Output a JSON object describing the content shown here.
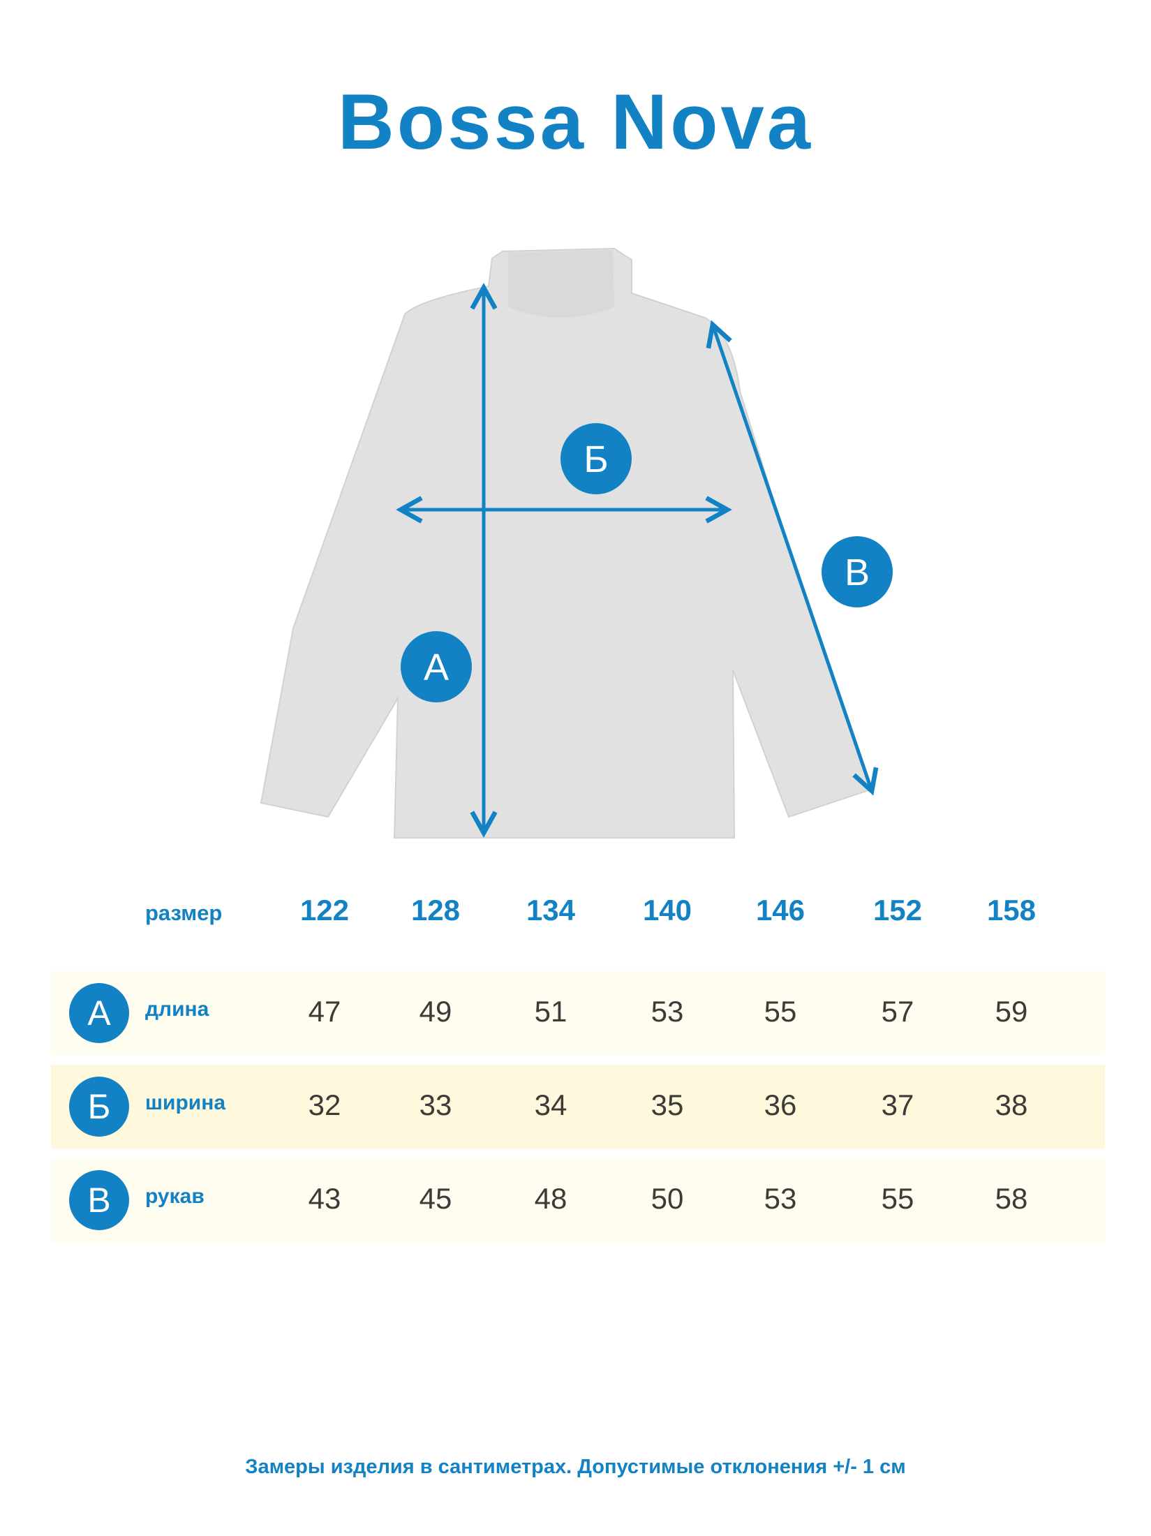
{
  "brand": "Bossa Nova",
  "colors": {
    "accent": "#1282c4",
    "row_light": "#fffdf0",
    "row_yellow": "#fef8dc",
    "garment": "#e1e1e1"
  },
  "diagram": {
    "labels": {
      "length": "А",
      "width": "Б",
      "sleeve": "В"
    }
  },
  "table": {
    "size_label": "размер",
    "sizes": [
      "122",
      "128",
      "134",
      "140",
      "146",
      "152",
      "158"
    ],
    "rows": [
      {
        "badge": "А",
        "label": "длина",
        "values": [
          "47",
          "49",
          "51",
          "53",
          "55",
          "57",
          "59"
        ]
      },
      {
        "badge": "Б",
        "label": "ширина",
        "values": [
          "32",
          "33",
          "34",
          "35",
          "36",
          "37",
          "38"
        ]
      },
      {
        "badge": "В",
        "label": "рукав",
        "values": [
          "43",
          "45",
          "48",
          "50",
          "53",
          "55",
          "58"
        ]
      }
    ]
  },
  "footer": "Замеры изделия в сантиметрах. Допустимые отклонения +/- 1 см"
}
